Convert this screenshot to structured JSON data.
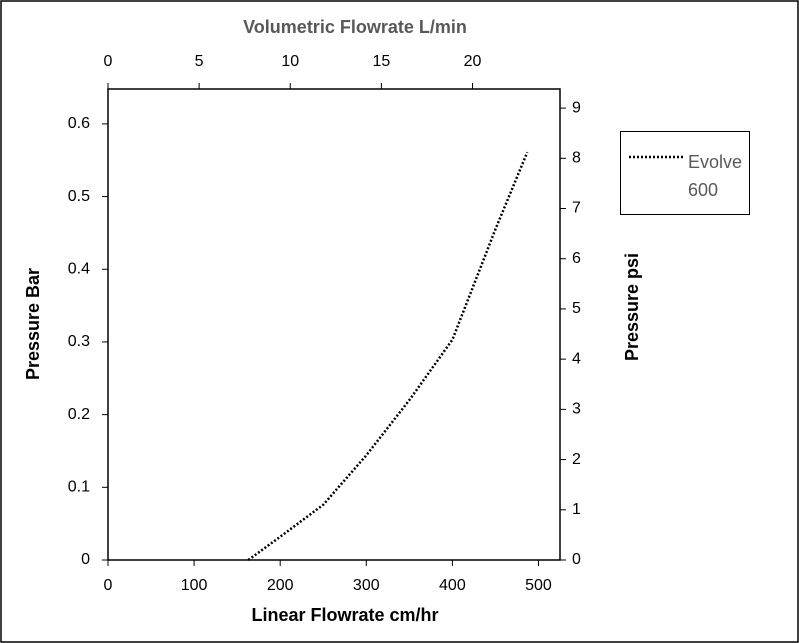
{
  "chart_data": {
    "type": "line",
    "title": "Volumetric Flowrate L/min",
    "x_label": "Linear Flowrate cm/hr",
    "y_label": "Pressure Bar",
    "y2_label": "Pressure psi",
    "x": [
      163,
      200,
      250,
      300,
      350,
      400,
      450,
      487
    ],
    "series": [
      {
        "name": "Evolve 600",
        "color": "#000000",
        "line_style": "dotted",
        "values": [
          0,
          0.032,
          0.076,
          0.144,
          0.22,
          0.303,
          0.455,
          0.561
        ]
      }
    ],
    "xlim": [
      0,
      525
    ],
    "xticks": [
      0,
      100,
      200,
      300,
      400,
      500
    ],
    "x2lim": [
      0,
      24.8
    ],
    "x2ticks": [
      0,
      5,
      10,
      15,
      20
    ],
    "ylim": [
      0,
      0.648
    ],
    "yticks": [
      0,
      0.1,
      0.2,
      0.3,
      0.4,
      0.5,
      0.6
    ],
    "y2lim": [
      0,
      9.38
    ],
    "y2ticks": [
      0,
      1,
      2,
      3,
      4,
      5,
      6,
      7,
      8,
      9
    ],
    "grid": false,
    "legend": "right"
  }
}
